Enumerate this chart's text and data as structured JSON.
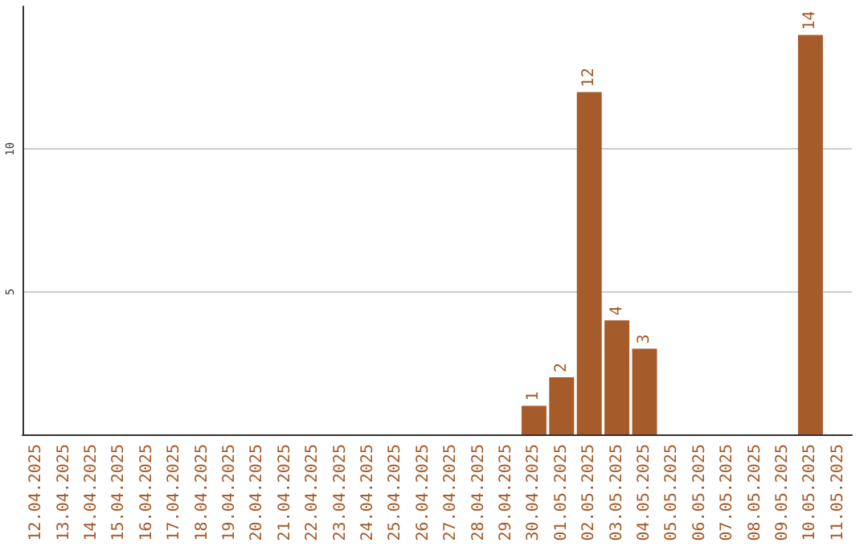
{
  "chart_data": {
    "type": "bar",
    "categories": [
      "12.04.2025",
      "13.04.2025",
      "14.04.2025",
      "15.04.2025",
      "16.04.2025",
      "17.04.2025",
      "18.04.2025",
      "19.04.2025",
      "20.04.2025",
      "21.04.2025",
      "22.04.2025",
      "23.04.2025",
      "24.04.2025",
      "25.04.2025",
      "26.04.2025",
      "27.04.2025",
      "28.04.2025",
      "29.04.2025",
      "30.04.2025",
      "01.05.2025",
      "02.05.2025",
      "03.05.2025",
      "04.05.2025",
      "05.05.2025",
      "06.05.2025",
      "07.05.2025",
      "08.05.2025",
      "09.05.2025",
      "10.05.2025",
      "11.05.2025"
    ],
    "values": [
      0,
      0,
      0,
      0,
      0,
      0,
      0,
      0,
      0,
      0,
      0,
      0,
      0,
      0,
      0,
      0,
      0,
      0,
      1,
      2,
      12,
      4,
      3,
      0,
      0,
      0,
      0,
      0,
      14,
      0
    ],
    "value_labels": [
      null,
      null,
      null,
      null,
      null,
      null,
      null,
      null,
      null,
      null,
      null,
      null,
      null,
      null,
      null,
      null,
      null,
      null,
      "1",
      "2",
      "12",
      "4",
      "3",
      null,
      null,
      null,
      null,
      null,
      "14",
      null
    ],
    "color": "#a65b2a",
    "ylim": [
      0,
      15
    ],
    "yticks": [
      5,
      10
    ],
    "grid": "y"
  }
}
